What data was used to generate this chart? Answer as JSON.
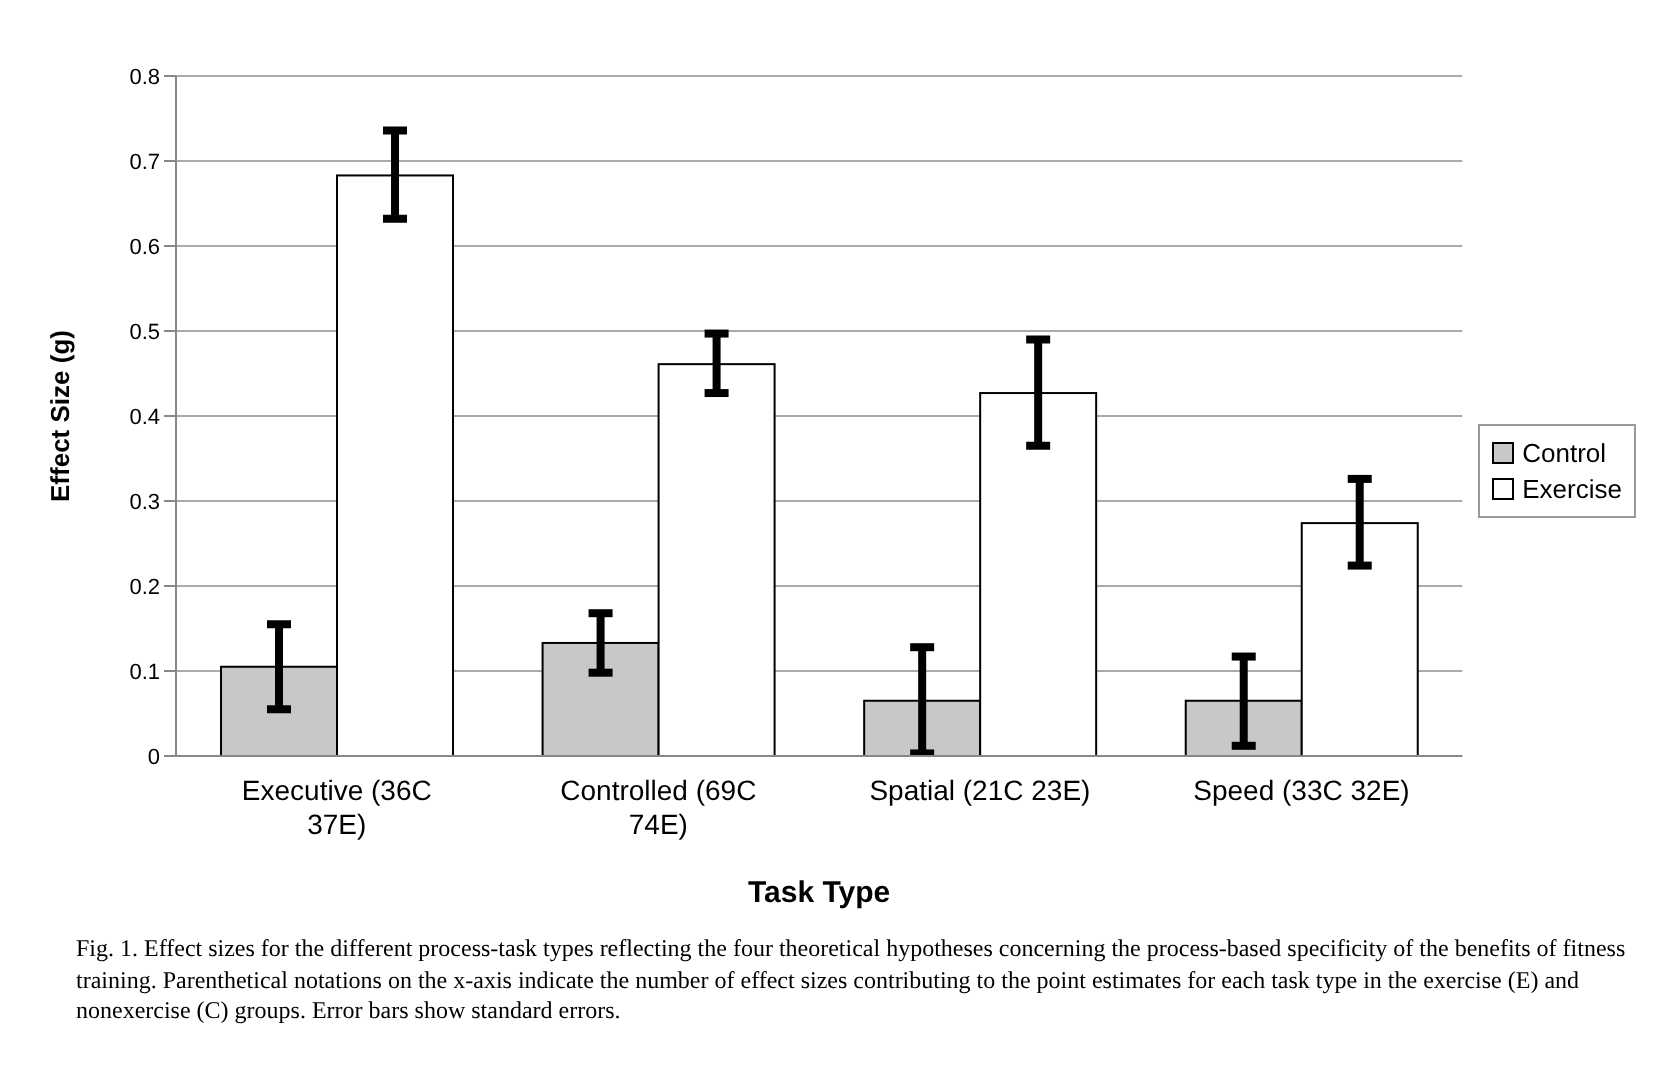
{
  "chart_data": {
    "type": "bar",
    "xlabel": "Task Type",
    "ylabel": "Effect Size (g)",
    "categories": [
      "Executive (36C 37E)",
      "Controlled (69C 74E)",
      "Spatial (21C 23E)",
      "Speed (33C 32E)"
    ],
    "series": [
      {
        "name": "Control",
        "color": "#c8c8c8",
        "values": [
          0.105,
          0.133,
          0.065,
          0.065
        ],
        "errors": [
          [
            0.055,
            0.155
          ],
          [
            0.098,
            0.168
          ],
          [
            0.003,
            0.128
          ],
          [
            0.012,
            0.117
          ]
        ]
      },
      {
        "name": "Exercise",
        "color": "#ffffff",
        "values": [
          0.683,
          0.461,
          0.427,
          0.274
        ],
        "errors": [
          [
            0.632,
            0.736
          ],
          [
            0.427,
            0.497
          ],
          [
            0.365,
            0.49
          ],
          [
            0.224,
            0.326
          ]
        ]
      }
    ],
    "ylim": [
      0,
      0.8
    ],
    "yticks": [
      0,
      0.1,
      0.2,
      0.3,
      0.4,
      0.5,
      0.6,
      0.7,
      0.8
    ],
    "grid": "y",
    "legend": "right",
    "annotations": [
      "Fig. 1.  Effect sizes for the different process-task types reflecting the four theoretical hypotheses concerning the process-based specificity of the benefits of fitness training. Parenthetical notations on the x-axis indicate the number of effect sizes contributing to the point estimates for each task type in the exercise (E) and nonexercise (C) groups. Error bars show standard errors."
    ]
  }
}
